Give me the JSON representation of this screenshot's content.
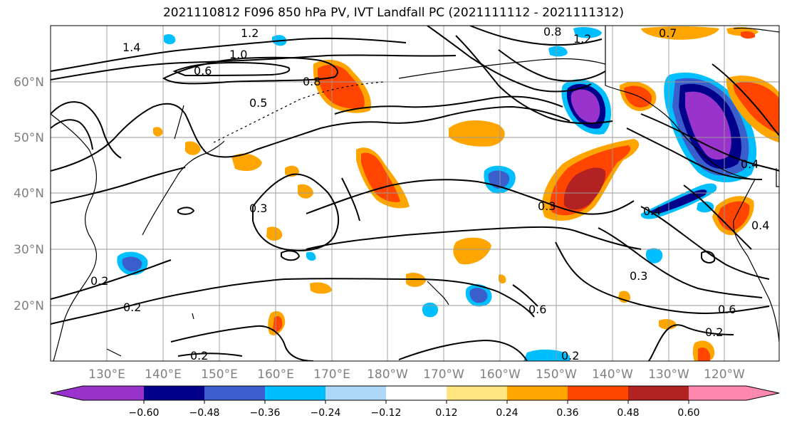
{
  "title": "2021110812 F096 850 hPa PV, IVT Landfall PC (2021111112 - 2021111312)",
  "lat_labels": [
    "60°N",
    "50°N",
    "40°N",
    "30°N",
    "20°N"
  ],
  "lon_labels": [
    "130°E",
    "140°E",
    "150°E",
    "160°E",
    "170°E",
    "180°W",
    "170°W",
    "160°W",
    "150°W",
    "140°W",
    "130°W",
    "120°W"
  ],
  "colorbar": {
    "colors": [
      "#9933cc",
      "#00008b",
      "#3a5fcd",
      "#00bfff",
      "#add8f8",
      "#ffffff",
      "#ffffff",
      "#ffe680",
      "#ffa500",
      "#ff4500",
      "#b22222",
      "#ff88b0"
    ],
    "ticks": [
      "−0.60",
      "−0.48",
      "−0.36",
      "−0.24",
      "−0.12",
      "0.12",
      "0.24",
      "0.36",
      "0.48",
      "0.60"
    ]
  },
  "contour_labels": [
    "1.4",
    "1.2",
    "1.0",
    "0.6",
    "0.5",
    "0.8",
    "0.3",
    "0.2",
    "0.6",
    "0.4",
    "0.7",
    "0.2",
    "0.3",
    "0.2",
    "0.8",
    "1.2",
    "0.2",
    "0.3",
    "0.4",
    "0.6",
    "0.2",
    "0.4"
  ]
}
